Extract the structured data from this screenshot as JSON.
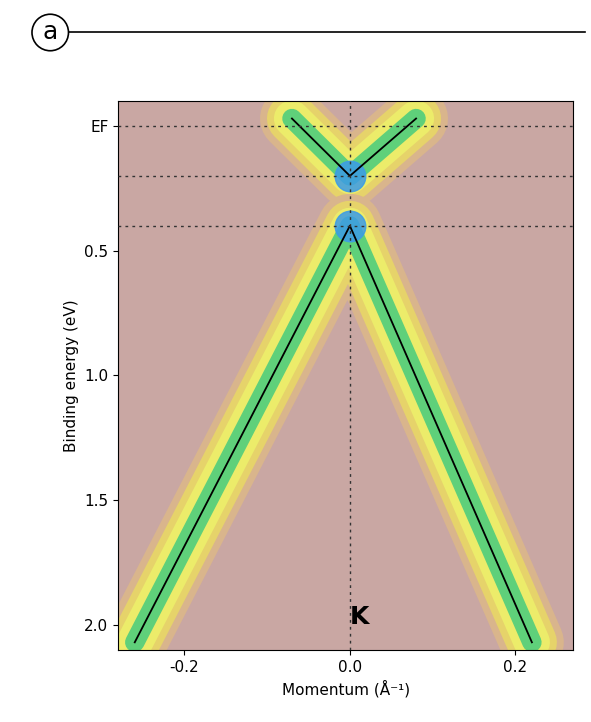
{
  "chart_data": {
    "type": "line",
    "title": "a",
    "x_label": "Momentum (Å⁻¹)",
    "y_label": "Binding energy (eV)",
    "series": [
      {
        "x": [
          -0.07,
          0.0,
          0.08
        ],
        "values": [
          -0.03,
          0.2,
          -0.03
        ],
        "color": "#000000",
        "line_style": "solid"
      },
      {
        "x": [
          -0.26,
          0.0,
          0.22
        ],
        "values": [
          2.07,
          0.4,
          2.07
        ],
        "color": "#000000",
        "line_style": "solid"
      }
    ],
    "reference_lines": {
      "y": [
        0,
        0.2,
        0.4
      ],
      "x": [
        0.0
      ]
    },
    "annotations": [
      {
        "text": "K",
        "x": 0.0,
        "y": 1.97
      }
    ],
    "xlim": [
      -0.28,
      0.27
    ],
    "ylim": [
      2.1,
      -0.1
    ],
    "xticks": [
      -0.2,
      0.0,
      0.2
    ],
    "yticks": [
      {
        "value": 0,
        "label": "EF"
      },
      0.5,
      1.0,
      1.5,
      2.0
    ],
    "grid": false
  }
}
